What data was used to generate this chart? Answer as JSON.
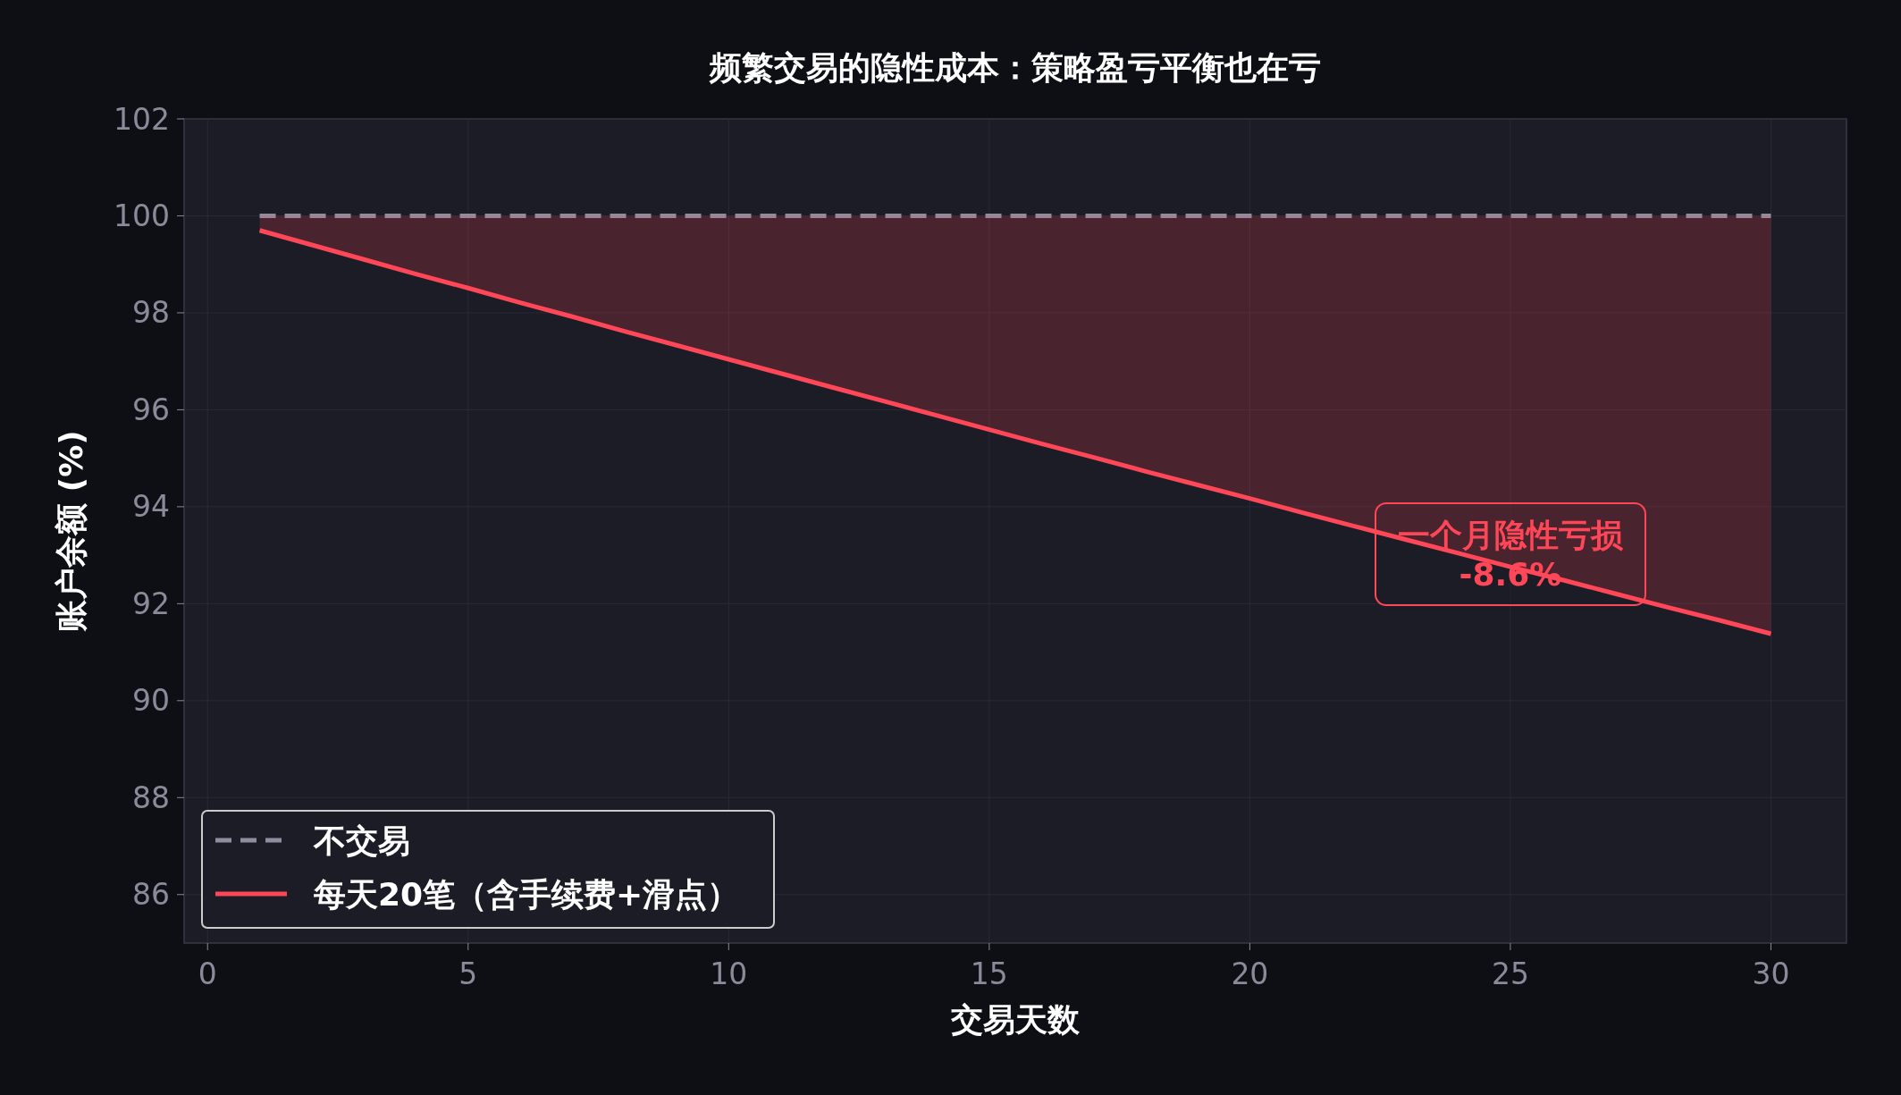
{
  "chart_data": {
    "type": "line",
    "title": "频繁交易的隐性成本：策略盈亏平衡也在亏",
    "xlabel": "交易天数",
    "ylabel": "账户余额 (%)",
    "x": [
      1,
      2,
      3,
      4,
      5,
      6,
      7,
      8,
      9,
      10,
      11,
      12,
      13,
      14,
      15,
      16,
      17,
      18,
      19,
      20,
      21,
      22,
      23,
      24,
      25,
      26,
      27,
      28,
      29,
      30
    ],
    "series": [
      {
        "name": "不交易",
        "color": "#8e8ea0",
        "line_style": "dashed",
        "values": [
          100,
          100,
          100,
          100,
          100,
          100,
          100,
          100,
          100,
          100,
          100,
          100,
          100,
          100,
          100,
          100,
          100,
          100,
          100,
          100,
          100,
          100,
          100,
          100,
          100,
          100,
          100,
          100,
          100,
          100
        ]
      },
      {
        "name": "每天20笔（含手续费+滑点）",
        "color": "#ff4757",
        "line_style": "solid",
        "values": [
          99.7,
          99.4,
          99.1,
          98.8,
          98.51,
          98.21,
          97.92,
          97.62,
          97.33,
          97.04,
          96.75,
          96.46,
          96.17,
          95.88,
          95.59,
          95.3,
          95.02,
          94.73,
          94.45,
          94.17,
          93.88,
          93.6,
          93.32,
          93.04,
          92.76,
          92.49,
          92.21,
          91.93,
          91.66,
          91.38
        ],
        "lower": [
          99.7,
          99.4,
          99.1,
          98.8,
          98.51,
          98.21,
          97.92,
          97.62,
          97.33,
          97.04,
          96.75,
          96.46,
          96.17,
          95.88,
          95.59,
          95.3,
          95.02,
          94.73,
          94.45,
          94.17,
          93.88,
          93.6,
          93.32,
          93.04,
          92.76,
          92.49,
          92.21,
          91.93,
          91.66,
          91.38
        ],
        "upper": [
          100,
          100,
          100,
          100,
          100,
          100,
          100,
          100,
          100,
          100,
          100,
          100,
          100,
          100,
          100,
          100,
          100,
          100,
          100,
          100,
          100,
          100,
          100,
          100,
          100,
          100,
          100,
          100,
          100,
          100
        ]
      }
    ],
    "xlim": [
      -0.45,
      31.45
    ],
    "xticks": [
      0,
      5,
      10,
      15,
      20,
      25,
      30
    ],
    "ylim": [
      85,
      102
    ],
    "yticks": [
      86,
      88,
      90,
      92,
      94,
      96,
      98,
      100,
      102
    ],
    "grid": true,
    "legend": "bottom left",
    "marker": "none",
    "annotations": [
      "一个月隐性亏损\n-8.6%"
    ]
  }
}
